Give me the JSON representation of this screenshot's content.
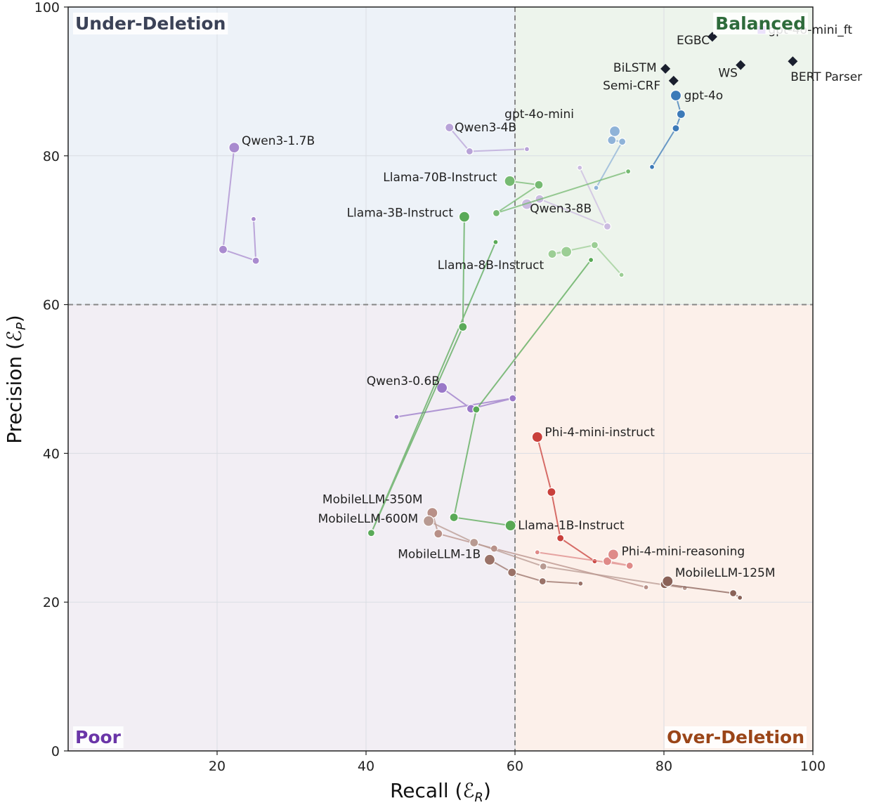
{
  "chart_data": {
    "type": "scatter",
    "title": "",
    "xlabel": "Recall (",
    "xlabel_sym": "ℰ",
    "xlabel_sub": "R",
    "ylabel": "Precision (",
    "ylabel_sym": "ℰ",
    "ylabel_sub": "P",
    "close_paren": ")",
    "xlim": [
      0,
      100
    ],
    "ylim": [
      0,
      100
    ],
    "xticks": [
      20,
      40,
      60,
      80,
      100
    ],
    "yticks": [
      0,
      20,
      40,
      60,
      80,
      100
    ],
    "grid": true,
    "threshold": {
      "x": 60,
      "y": 60
    },
    "quadrants": [
      {
        "name": "Under-Deletion",
        "position": "top-left",
        "color": "#3b4257",
        "bg": "#edf2f8"
      },
      {
        "name": "Balanced",
        "position": "top-right",
        "color": "#2e6b3b",
        "bg": "#edf4ec"
      },
      {
        "name": "Poor",
        "position": "bottom-left",
        "color": "#6a35a8",
        "bg": "#f2eef4"
      },
      {
        "name": "Over-Deletion",
        "position": "bottom-right",
        "color": "#9a4518",
        "bg": "#fcf0ea"
      }
    ],
    "baselines": [
      {
        "name": "EGBC",
        "x": 86.5,
        "y": 96.0
      },
      {
        "name": "BiLSTM",
        "x": 80.2,
        "y": 91.7
      },
      {
        "name": "Semi-CRF",
        "x": 81.3,
        "y": 90.1
      },
      {
        "name": "WS",
        "x": 90.3,
        "y": 92.2
      },
      {
        "name": "BERT Parser",
        "x": 97.3,
        "y": 92.7
      }
    ],
    "baseline_color": "#1a1f2e",
    "highlight": {
      "name": "gpt-4o-mini_ft",
      "color": "#7b3fe4"
    },
    "series": [
      {
        "name": "gpt-4o",
        "color": "#3c7ab8",
        "points": [
          {
            "x": 78.4,
            "y": 78.5
          },
          {
            "x": 81.6,
            "y": 83.7
          },
          {
            "x": 82.3,
            "y": 85.6
          },
          {
            "x": 81.6,
            "y": 88.1
          }
        ]
      },
      {
        "name": "gpt-4o-mini",
        "color": "#8fb3d8",
        "points": [
          {
            "x": 70.9,
            "y": 75.7
          },
          {
            "x": 74.4,
            "y": 81.9
          },
          {
            "x": 73.0,
            "y": 82.1
          },
          {
            "x": 73.4,
            "y": 83.3
          }
        ]
      },
      {
        "name": "Qwen3-1.7B",
        "color": "#a98bcf",
        "points": [
          {
            "x": 24.9,
            "y": 71.5
          },
          {
            "x": 25.2,
            "y": 65.9
          },
          {
            "x": 20.8,
            "y": 67.4
          },
          {
            "x": 22.3,
            "y": 81.1
          }
        ]
      },
      {
        "name": "Qwen3-4B",
        "color": "#b8a3d8",
        "points": [
          {
            "x": 61.6,
            "y": 80.9
          },
          {
            "x": 53.9,
            "y": 80.6
          },
          {
            "x": 51.2,
            "y": 83.8
          }
        ]
      },
      {
        "name": "Qwen3-8B",
        "color": "#cbbbe0",
        "points": [
          {
            "x": 68.7,
            "y": 78.4
          },
          {
            "x": 72.4,
            "y": 70.5
          },
          {
            "x": 63.3,
            "y": 74.2
          },
          {
            "x": 61.6,
            "y": 73.5
          }
        ]
      },
      {
        "name": "Qwen3-0.6B",
        "color": "#9a78c8",
        "points": [
          {
            "x": 44.1,
            "y": 44.9
          },
          {
            "x": 59.7,
            "y": 47.4
          },
          {
            "x": 54.1,
            "y": 46.0
          },
          {
            "x": 50.2,
            "y": 48.8
          }
        ]
      },
      {
        "name": "Llama-70B-Instruct",
        "color": "#76ba72",
        "points": [
          {
            "x": 75.2,
            "y": 77.9
          },
          {
            "x": 57.5,
            "y": 72.3
          },
          {
            "x": 63.2,
            "y": 76.1
          },
          {
            "x": 59.3,
            "y": 76.6
          }
        ]
      },
      {
        "name": "Llama-3B-Instruct",
        "color": "#5aaa58",
        "points": [
          {
            "x": 57.4,
            "y": 68.4
          },
          {
            "x": 40.7,
            "y": 29.3
          },
          {
            "x": 53.0,
            "y": 57.0
          },
          {
            "x": 53.2,
            "y": 71.8
          }
        ]
      },
      {
        "name": "Llama-8B-Instruct",
        "color": "#9cce95",
        "points": [
          {
            "x": 74.3,
            "y": 64.0
          },
          {
            "x": 70.7,
            "y": 68.0
          },
          {
            "x": 65.0,
            "y": 66.8
          },
          {
            "x": 66.9,
            "y": 67.1
          }
        ]
      },
      {
        "name": "Llama-1B-Instruct",
        "color": "#58a955",
        "points": [
          {
            "x": 70.2,
            "y": 66.0
          },
          {
            "x": 54.8,
            "y": 45.9
          },
          {
            "x": 51.8,
            "y": 31.4
          },
          {
            "x": 59.4,
            "y": 30.3
          }
        ]
      },
      {
        "name": "Phi-4-mini-instruct",
        "color": "#c9403b",
        "points": [
          {
            "x": 70.7,
            "y": 25.5
          },
          {
            "x": 66.1,
            "y": 28.6
          },
          {
            "x": 64.9,
            "y": 34.8
          },
          {
            "x": 63.0,
            "y": 42.2
          }
        ]
      },
      {
        "name": "Phi-4-mini-reasoning",
        "color": "#df8a88",
        "points": [
          {
            "x": 63.0,
            "y": 26.7
          },
          {
            "x": 75.4,
            "y": 24.9
          },
          {
            "x": 72.4,
            "y": 25.5
          },
          {
            "x": 73.2,
            "y": 26.4
          }
        ]
      },
      {
        "name": "MobileLLM-350M",
        "color": "#b89088",
        "points": [
          {
            "x": 77.6,
            "y": 22.0
          },
          {
            "x": 57.2,
            "y": 27.2
          },
          {
            "x": 49.7,
            "y": 29.2
          },
          {
            "x": 48.9,
            "y": 32.0
          }
        ]
      },
      {
        "name": "MobileLLM-600M",
        "color": "#b89a92",
        "points": [
          {
            "x": 82.8,
            "y": 21.9
          },
          {
            "x": 63.8,
            "y": 24.8
          },
          {
            "x": 54.5,
            "y": 28.0
          },
          {
            "x": 48.4,
            "y": 30.9
          }
        ]
      },
      {
        "name": "MobileLLM-1B",
        "color": "#9a7268",
        "points": [
          {
            "x": 68.8,
            "y": 22.5
          },
          {
            "x": 63.7,
            "y": 22.8
          },
          {
            "x": 59.6,
            "y": 24.0
          },
          {
            "x": 56.6,
            "y": 25.7
          }
        ]
      },
      {
        "name": "MobileLLM-125M",
        "color": "#8a6258",
        "points": [
          {
            "x": 90.2,
            "y": 20.6
          },
          {
            "x": 89.3,
            "y": 21.2
          },
          {
            "x": 80.1,
            "y": 22.4
          },
          {
            "x": 80.5,
            "y": 22.8
          }
        ]
      }
    ],
    "labels": [
      {
        "text": "EGBC",
        "x": 81.7,
        "y": 95.0,
        "anchor": "start"
      },
      {
        "text": "BiLSTM",
        "x": 73.2,
        "y": 91.3,
        "anchor": "start"
      },
      {
        "text": "Semi-CRF",
        "x": 71.8,
        "y": 88.9,
        "anchor": "start"
      },
      {
        "text": "WS",
        "x": 87.3,
        "y": 90.6,
        "anchor": "start"
      },
      {
        "text": "BERT Parser",
        "x": 97.0,
        "y": 90.1,
        "anchor": "start"
      },
      {
        "text": "gpt-4o-mini_ft",
        "x": 94.0,
        "y": 96.4,
        "anchor": "start"
      },
      {
        "text": "gpt-4o",
        "x": 82.7,
        "y": 87.6,
        "anchor": "start"
      },
      {
        "text": "gpt-4o-mini",
        "x": 58.6,
        "y": 85.1,
        "anchor": "start"
      },
      {
        "text": "Qwen3-1.7B",
        "x": 23.3,
        "y": 81.5,
        "anchor": "start"
      },
      {
        "text": "Qwen3-4B",
        "x": 51.9,
        "y": 83.3,
        "anchor": "start"
      },
      {
        "text": "Qwen3-8B",
        "x": 62.0,
        "y": 72.4,
        "anchor": "start"
      },
      {
        "text": "Qwen3-0.6B",
        "x": 49.9,
        "y": 49.2,
        "anchor": "end"
      },
      {
        "text": "Llama-70B-Instruct",
        "x": 57.6,
        "y": 76.6,
        "anchor": "end"
      },
      {
        "text": "Llama-3B-Instruct",
        "x": 51.7,
        "y": 71.8,
        "anchor": "end"
      },
      {
        "text": "Llama-8B-Instruct",
        "x": 49.6,
        "y": 64.8,
        "anchor": "start"
      },
      {
        "text": "Llama-1B-Instruct",
        "x": 60.4,
        "y": 29.8,
        "anchor": "start"
      },
      {
        "text": "Phi-4-mini-instruct",
        "x": 64.0,
        "y": 42.3,
        "anchor": "start"
      },
      {
        "text": "Phi-4-mini-reasoning",
        "x": 74.3,
        "y": 26.3,
        "anchor": "start"
      },
      {
        "text": "MobileLLM-350M",
        "x": 47.6,
        "y": 33.3,
        "anchor": "end"
      },
      {
        "text": "MobileLLM-600M",
        "x": 47.0,
        "y": 30.7,
        "anchor": "end"
      },
      {
        "text": "MobileLLM-1B",
        "x": 55.4,
        "y": 25.9,
        "anchor": "end"
      },
      {
        "text": "MobileLLM-125M",
        "x": 81.5,
        "y": 23.4,
        "anchor": "start"
      }
    ]
  }
}
